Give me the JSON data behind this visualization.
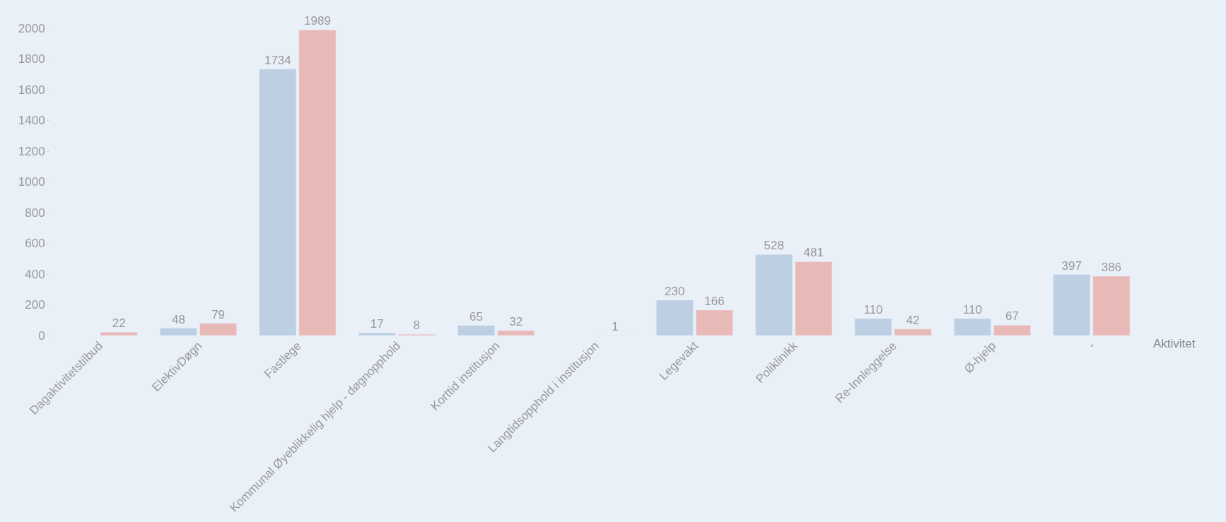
{
  "chart_data": {
    "type": "bar",
    "xlabel": "Aktivitet",
    "categories": [
      "Dagaktivitetstilbud",
      "ElektivDøgn",
      "Fastlege",
      "Kommunal Øyeblikkelig hjelp - døgnopphold",
      "Korttid institusjon",
      "Langtidsopphold i institusjon",
      "Legevakt",
      "Poliklinikk",
      "Re-Innleggelse",
      "Ø-hjelp",
      "-"
    ],
    "series": [
      {
        "color": "#bccfe3",
        "values": [
          null,
          48,
          1734,
          17,
          65,
          null,
          230,
          528,
          110,
          110,
          397
        ]
      },
      {
        "color": "#e9b9b8",
        "values": [
          22,
          79,
          1989,
          8,
          32,
          1,
          166,
          481,
          42,
          67,
          386
        ]
      }
    ],
    "ylim": [
      0,
      2000
    ],
    "yticks": [
      0,
      200,
      400,
      600,
      800,
      1000,
      1200,
      1400,
      1600,
      1800,
      2000
    ],
    "data_labels": true,
    "grid": false,
    "legend": false
  }
}
